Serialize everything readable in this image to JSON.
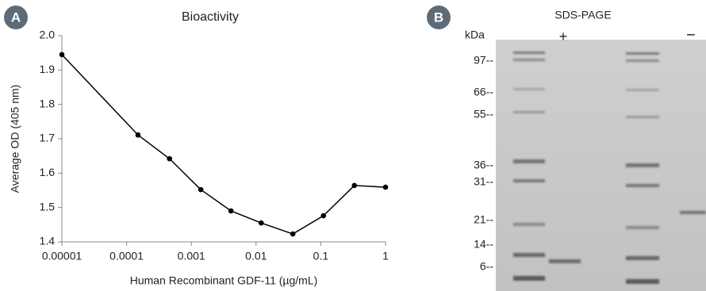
{
  "panel_labels": [
    "A",
    "B"
  ],
  "chart_data": {
    "type": "line",
    "title": "Bioactivity",
    "x_label": "Human Recombinant GDF-11 (µg/mL)",
    "y_label": "Average OD (405 nm)",
    "x": [
      1e-05,
      0.00015,
      0.00046,
      0.0014,
      0.0041,
      0.012,
      0.037,
      0.11,
      0.33,
      1
    ],
    "series": [
      {
        "color": "#000000",
        "values": [
          1.945,
          1.711,
          1.642,
          1.552,
          1.49,
          1.455,
          1.423,
          1.476,
          1.564,
          1.559
        ]
      }
    ],
    "x_scale": "log",
    "xlim": [
      1e-05,
      1
    ],
    "xticks": [
      1e-05,
      0.0001,
      0.001,
      0.01,
      0.1,
      1
    ],
    "ylim": [
      1.4,
      2
    ],
    "yticks": [
      1.4,
      1.5,
      1.6,
      1.7,
      1.8,
      1.9,
      {
        "value": 2,
        "label": "2.0"
      }
    ],
    "grid": false
  },
  "gel": {
    "title": "SDS-PAGE",
    "unit_label": "kDa",
    "lane_labels": [
      "+",
      "−"
    ],
    "markers": [
      "97--",
      "66--",
      "55--",
      "36--",
      "31--",
      "21--",
      "14--",
      "6--"
    ]
  }
}
